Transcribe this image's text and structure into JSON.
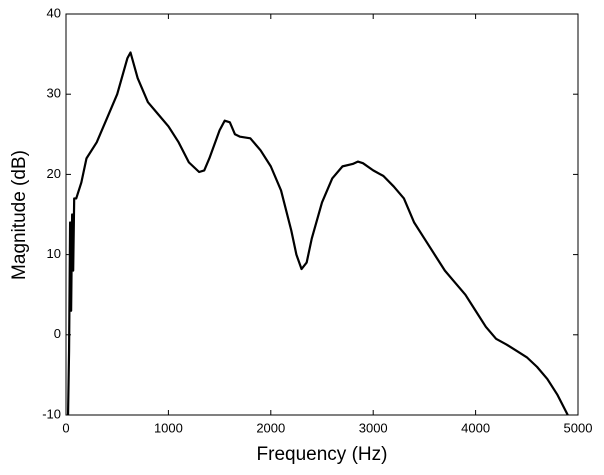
{
  "chart_data": {
    "type": "line",
    "x_label": "Frequency (Hz)",
    "y_label": "Magnitude (dB)",
    "xlim": [
      0,
      5000
    ],
    "ylim": [
      -10,
      40
    ],
    "xticks": [
      0,
      1000,
      2000,
      3000,
      4000,
      5000
    ],
    "yticks": [
      -10,
      0,
      10,
      20,
      30,
      40
    ],
    "grid": false,
    "series": [
      {
        "color": "#000000",
        "x": [
          20,
          30,
          40,
          50,
          60,
          70,
          80,
          100,
          150,
          200,
          300,
          400,
          500,
          600,
          630,
          700,
          800,
          900,
          1000,
          1100,
          1200,
          1300,
          1350,
          1400,
          1500,
          1550,
          1600,
          1650,
          1700,
          1800,
          1900,
          2000,
          2100,
          2200,
          2250,
          2300,
          2350,
          2400,
          2500,
          2600,
          2700,
          2800,
          2850,
          2900,
          3000,
          3100,
          3200,
          3300,
          3400,
          3500,
          3600,
          3700,
          3800,
          3900,
          4000,
          4100,
          4200,
          4300,
          4400,
          4500,
          4600,
          4700,
          4800,
          4900
        ],
        "values": [
          -10,
          -2,
          14,
          3,
          15,
          8,
          17,
          17,
          19,
          22,
          24,
          27,
          30,
          34.5,
          35.2,
          32,
          29,
          27.5,
          26,
          24,
          21.5,
          20.3,
          20.5,
          22,
          25.5,
          26.7,
          26.5,
          25,
          24.7,
          24.5,
          23,
          21,
          18,
          13,
          10,
          8.2,
          9,
          12,
          16.5,
          19.5,
          21,
          21.3,
          21.6,
          21.4,
          20.5,
          19.8,
          18.5,
          17,
          14,
          12,
          10,
          8,
          6.5,
          5,
          3,
          1,
          -0.5,
          -1.2,
          -2,
          -2.8,
          -4,
          -5.5,
          -7.5,
          -10
        ]
      }
    ]
  }
}
